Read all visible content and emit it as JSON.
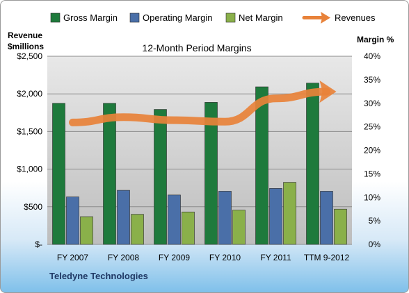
{
  "chart_data": {
    "type": "bar",
    "title": "12-Month Period Margins",
    "company": "Teledyne Technologies",
    "categories": [
      "FY 2007",
      "FY 2008",
      "FY 2009",
      "FY 2010",
      "FY 2011",
      "TTM 9-2012"
    ],
    "left_axis": {
      "label_line1": "Revenue",
      "label_line2": "$millions",
      "ylim": [
        0,
        2500
      ],
      "ticks": [
        0,
        500,
        1000,
        1500,
        2000,
        2500
      ],
      "tick_labels": [
        "$-",
        "$500",
        "$1,000",
        "$1,500",
        "$2,000",
        "$2,500"
      ]
    },
    "right_axis": {
      "label": "Margin %",
      "ylim": [
        0,
        40
      ],
      "ticks": [
        0,
        5,
        10,
        15,
        20,
        25,
        30,
        35,
        40
      ],
      "tick_labels": [
        "0%",
        "5%",
        "10%",
        "15%",
        "20%",
        "25%",
        "30%",
        "35%",
        "40%"
      ]
    },
    "series": [
      {
        "name": "Gross Margin",
        "kind": "bar",
        "axis": "right",
        "color": "#1e7a3c",
        "values": [
          30.0,
          30.0,
          28.7,
          30.2,
          33.5,
          34.3
        ]
      },
      {
        "name": "Operating Margin",
        "kind": "bar",
        "axis": "right",
        "color": "#4a6fa8",
        "values": [
          10.1,
          11.5,
          10.5,
          11.3,
          11.9,
          11.3
        ]
      },
      {
        "name": "Net Margin",
        "kind": "bar",
        "axis": "right",
        "color": "#8ab04a",
        "values": [
          5.9,
          6.4,
          6.9,
          7.3,
          13.2,
          7.5
        ]
      },
      {
        "name": "Revenues",
        "kind": "line",
        "axis": "left",
        "color": "#e8823a",
        "values": [
          1620,
          1690,
          1650,
          1630,
          1940,
          2030
        ]
      }
    ],
    "grid": true,
    "legend_position": "top"
  }
}
